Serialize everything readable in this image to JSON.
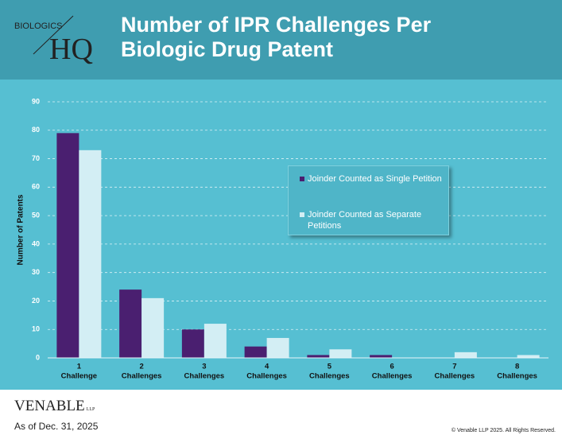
{
  "header": {
    "brand_small": "BIOLOGICS",
    "brand_large": "HQ"
  },
  "chart_data": {
    "type": "bar",
    "title": "Number of IPR Challenges Per Biologic Drug Patent",
    "y_label": "Number of Patents",
    "categories": [
      [
        "1",
        "Challenge"
      ],
      [
        "2",
        "Challenges"
      ],
      [
        "3",
        "Challenges"
      ],
      [
        "4",
        "Challenges"
      ],
      [
        "5",
        "Challenges"
      ],
      [
        "6",
        "Challenges"
      ],
      [
        "7",
        "Challenges"
      ],
      [
        "8",
        "Challenges"
      ]
    ],
    "series": [
      {
        "name": "Joinder Counted as Single Petition",
        "color": "#4a1f70",
        "values": [
          79,
          24,
          10,
          4,
          1,
          1,
          0,
          0
        ]
      },
      {
        "name": "Joinder Counted as Separate Petitions",
        "color": "#d3eef4",
        "values": [
          73,
          21,
          12,
          7,
          3,
          0,
          2,
          1
        ]
      }
    ],
    "ylim": [
      0,
      90
    ],
    "yticks": [
      0,
      10,
      20,
      30,
      40,
      50,
      60,
      70,
      80,
      90
    ],
    "grid": true,
    "legend": "right"
  },
  "footer": {
    "firm": "VENABLE",
    "firm_suffix": "LLP",
    "as_of": "As of Dec. 31, 2025",
    "copyright": "© Venable LLP 2025. All Rights Reserved."
  }
}
